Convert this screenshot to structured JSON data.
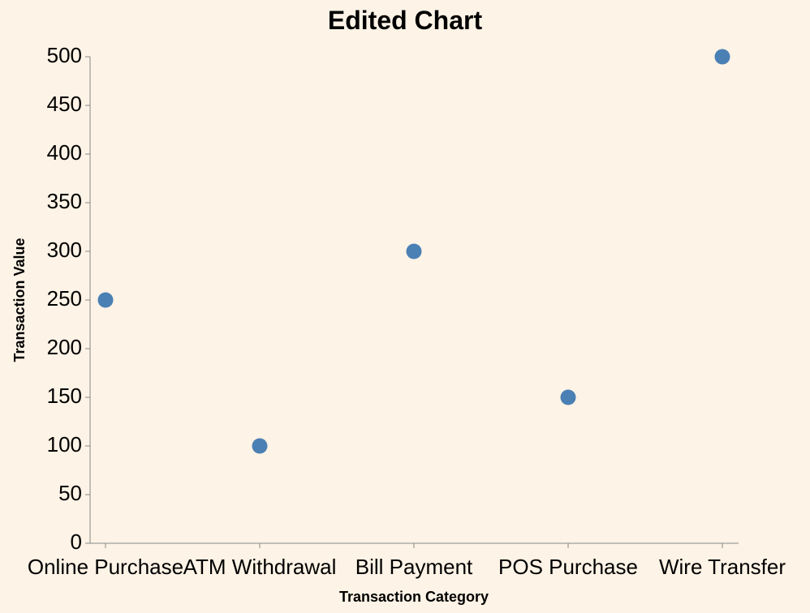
{
  "colors": {
    "background": "#fdf3e6",
    "point": "#4a80b4",
    "axis": "#888888",
    "text": "#000000"
  },
  "chart_data": {
    "type": "scatter",
    "title": "Edited Chart",
    "xlabel": "Transaction Category",
    "ylabel": "Transaction Value",
    "categories": [
      "Online Purchase",
      "ATM Withdrawal",
      "Bill Payment",
      "POS Purchase",
      "Wire Transfer"
    ],
    "values": [
      250,
      100,
      300,
      150,
      500
    ],
    "ylim": [
      0,
      500
    ],
    "yticks": [
      0,
      50,
      100,
      150,
      200,
      250,
      300,
      350,
      400,
      450,
      500
    ],
    "grid": false,
    "legend": "none"
  }
}
